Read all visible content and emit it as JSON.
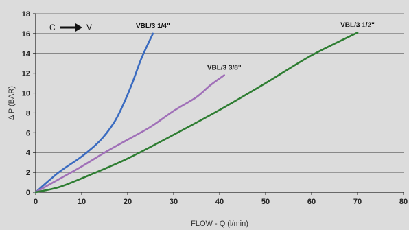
{
  "chart_data": {
    "type": "line",
    "xlabel": "FLOW - Q (l/min)",
    "ylabel": "Δ P (BAR)",
    "xlim": [
      0,
      80
    ],
    "ylim": [
      0,
      18
    ],
    "xticks": [
      0,
      10,
      20,
      30,
      40,
      50,
      60,
      70,
      80
    ],
    "yticks": [
      0,
      2,
      4,
      6,
      8,
      10,
      12,
      14,
      16,
      18
    ],
    "grid": "horizontal",
    "annotation": {
      "from": "C",
      "to": "V"
    },
    "series": [
      {
        "name": "VBL/3 1/4\"",
        "color": "#3a6bc0",
        "x": [
          0,
          5,
          10,
          14,
          17,
          19,
          21,
          23,
          25.5
        ],
        "y": [
          0,
          2.0,
          3.6,
          5.2,
          7.0,
          8.8,
          11.0,
          13.5,
          16.0
        ]
      },
      {
        "name": "VBL/3 3/8\"",
        "color": "#a070b8",
        "x": [
          0,
          5,
          10,
          15,
          20,
          25,
          30,
          35,
          38,
          41
        ],
        "y": [
          0,
          1.3,
          2.6,
          4.0,
          5.3,
          6.6,
          8.2,
          9.6,
          10.8,
          11.8
        ]
      },
      {
        "name": "VBL/3 1/2\"",
        "color": "#2e7d32",
        "x": [
          0,
          5,
          10,
          20,
          30,
          40,
          50,
          60,
          70
        ],
        "y": [
          0,
          0.5,
          1.4,
          3.4,
          5.8,
          8.3,
          11.0,
          13.8,
          16.1
        ]
      }
    ]
  }
}
